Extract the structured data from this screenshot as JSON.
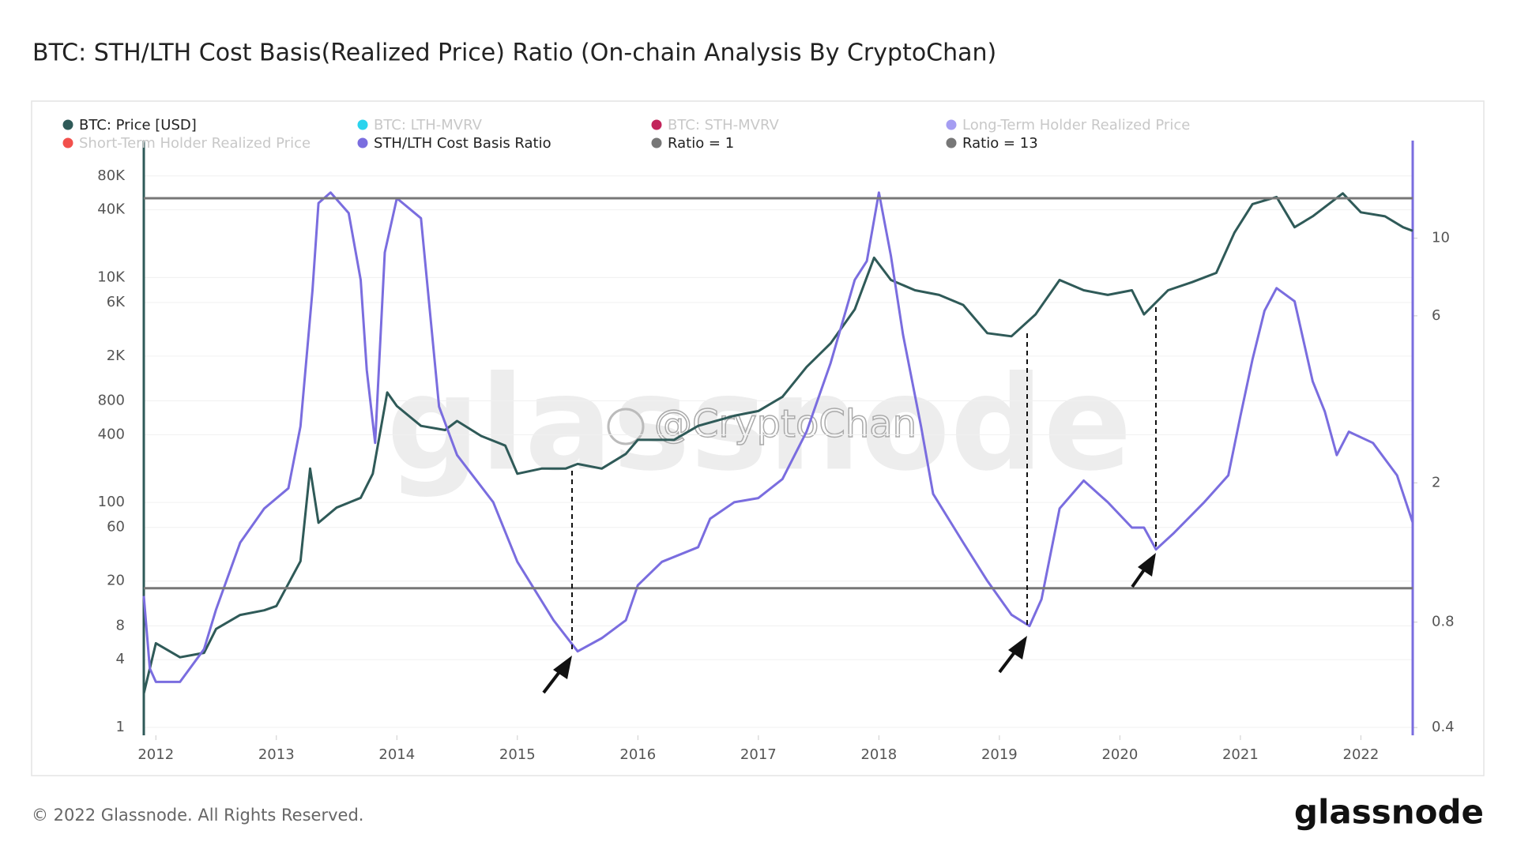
{
  "chart_data": {
    "type": "line",
    "title": "BTC: STH/LTH Cost Basis(Realized Price) Ratio (On-chain Analysis By CryptoChan)",
    "footer": "© 2022 Glassnode. All Rights Reserved.",
    "logo": "glassnode",
    "watermark": "glassnode",
    "watermark_author": "@CryptoChan",
    "xlim": [
      2011.9,
      2022.43
    ],
    "xticks": [
      2012,
      2013,
      2014,
      2015,
      2016,
      2017,
      2018,
      2019,
      2020,
      2021,
      2022
    ],
    "ylim": [
      0.85,
      165000
    ],
    "yticks": [
      1,
      4,
      8,
      20,
      60,
      100,
      400,
      800,
      {
        "value": 2000,
        "label": "2K"
      },
      {
        "value": 6000,
        "label": "6K"
      },
      {
        "value": 10000,
        "label": "10K"
      },
      {
        "value": 40000,
        "label": "40K"
      },
      {
        "value": 80000,
        "label": "80K"
      }
    ],
    "y_log": true,
    "y2lim": [
      0.38,
      19
    ],
    "y2ticks": [
      0.4,
      0.8,
      2,
      6,
      10
    ],
    "y2_log": true,
    "grid": true,
    "series": [
      {
        "name": "BTC: Price [USD]",
        "color": "#2f5a58",
        "x": [
          2011.9,
          2012.0,
          2012.2,
          2012.4,
          2012.5,
          2012.7,
          2012.9,
          2013.0,
          2013.2,
          2013.28,
          2013.35,
          2013.5,
          2013.7,
          2013.8,
          2013.92,
          2014.0,
          2014.2,
          2014.4,
          2014.5,
          2014.7,
          2014.9,
          2015.0,
          2015.2,
          2015.4,
          2015.5,
          2015.7,
          2015.9,
          2016.0,
          2016.3,
          2016.5,
          2016.8,
          2017.0,
          2017.2,
          2017.4,
          2017.6,
          2017.8,
          2017.96,
          2018.1,
          2018.3,
          2018.5,
          2018.7,
          2018.9,
          2019.1,
          2019.3,
          2019.5,
          2019.7,
          2019.9,
          2020.1,
          2020.2,
          2020.4,
          2020.6,
          2020.8,
          2020.95,
          2021.1,
          2021.3,
          2021.45,
          2021.6,
          2021.85,
          2022.0,
          2022.2,
          2022.35,
          2022.43
        ],
        "values": [
          2,
          5.6,
          4.2,
          4.6,
          7.5,
          10,
          11,
          12,
          30,
          200,
          66,
          90,
          110,
          180,
          950,
          720,
          480,
          440,
          530,
          390,
          320,
          180,
          200,
          200,
          220,
          200,
          270,
          360,
          360,
          480,
          590,
          650,
          870,
          1600,
          2600,
          5200,
          15000,
          9500,
          7700,
          7000,
          5700,
          3200,
          3000,
          4700,
          9500,
          7700,
          7000,
          7700,
          4700,
          7700,
          9100,
          11000,
          25000,
          45000,
          52000,
          28000,
          35000,
          56000,
          38000,
          35000,
          28000,
          26000
        ]
      },
      {
        "name": "BTC: LTH-MVRV",
        "color": "#2ad4ee",
        "visible": false
      },
      {
        "name": "BTC: STH-MVRV",
        "color": "#c2245b",
        "visible": false
      },
      {
        "name": "Long-Term Holder Realized Price",
        "color": "#a59df2",
        "visible": false
      },
      {
        "name": "Short-Term Holder Realized Price",
        "color": "#f2504c",
        "visible": false
      },
      {
        "name": "STH/LTH Cost Basis Ratio",
        "color": "#7a6ddf",
        "axis": "y2",
        "x": [
          2011.9,
          2011.95,
          2012.0,
          2012.2,
          2012.4,
          2012.5,
          2012.7,
          2012.9,
          2013.1,
          2013.2,
          2013.3,
          2013.35,
          2013.45,
          2013.6,
          2013.7,
          2013.75,
          2013.82,
          2013.9,
          2014.0,
          2014.2,
          2014.35,
          2014.5,
          2014.8,
          2015.0,
          2015.3,
          2015.5,
          2015.7,
          2015.9,
          2016.0,
          2016.2,
          2016.5,
          2016.6,
          2016.8,
          2017.0,
          2017.2,
          2017.4,
          2017.6,
          2017.8,
          2017.9,
          2018.0,
          2018.1,
          2018.2,
          2018.35,
          2018.45,
          2018.7,
          2018.9,
          2019.1,
          2019.25,
          2019.35,
          2019.5,
          2019.7,
          2019.9,
          2020.1,
          2020.2,
          2020.3,
          2020.45,
          2020.7,
          2020.9,
          2021.0,
          2021.1,
          2021.2,
          2021.3,
          2021.45,
          2021.6,
          2021.7,
          2021.8,
          2021.9,
          2022.1,
          2022.3,
          2022.43
        ],
        "values": [
          0.95,
          0.59,
          0.54,
          0.54,
          0.67,
          0.87,
          1.35,
          1.69,
          1.93,
          2.9,
          7.1,
          12.6,
          13.5,
          11.8,
          7.6,
          4.2,
          2.6,
          9.1,
          13,
          11.4,
          3.3,
          2.4,
          1.76,
          1.19,
          0.81,
          0.66,
          0.72,
          0.81,
          1.02,
          1.19,
          1.31,
          1.58,
          1.76,
          1.81,
          2.05,
          2.8,
          4.4,
          7.6,
          8.6,
          13.5,
          8.9,
          5.3,
          2.9,
          1.86,
          1.35,
          1.05,
          0.84,
          0.78,
          0.93,
          1.69,
          2.03,
          1.76,
          1.49,
          1.49,
          1.29,
          1.44,
          1.76,
          2.1,
          3.1,
          4.5,
          6.2,
          7.2,
          6.6,
          3.9,
          3.2,
          2.4,
          2.8,
          2.6,
          2.1,
          1.54
        ]
      },
      {
        "name": "Ratio = 1",
        "color": "#777777",
        "axis": "y2",
        "value": 1
      },
      {
        "name": "Ratio = 13",
        "color": "#777777",
        "axis": "y2",
        "value": 13
      }
    ]
  }
}
